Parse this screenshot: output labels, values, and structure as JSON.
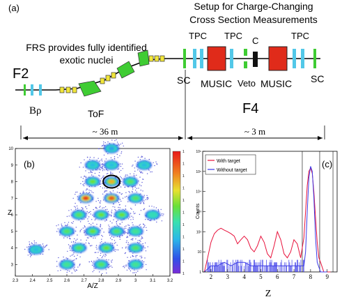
{
  "panel_a": {
    "label": "(a)",
    "setup_title_line1": "Setup for Charge-Changing",
    "setup_title_line2": "Cross Section Measurements",
    "frs_text_line1": "FRS provides fully identified",
    "frs_text_line2": "exotic nuclei",
    "f2": "F2",
    "f4": "F4",
    "brho": "Bρ",
    "tof": "ToF",
    "sc_left": "SC",
    "sc_right": "SC",
    "tpc1": "TPC",
    "tpc2": "TPC",
    "tpc3": "TPC",
    "c_label": "C",
    "music1": "MUSIC",
    "music2": "MUSIC",
    "veto": "Veto",
    "dist_left": "~ 36 m",
    "dist_right": "~ 3 m",
    "colors": {
      "quad": "#f2e63a",
      "dipole": "#3fcc33",
      "music": "#e02b1a",
      "tpc": "#52c8e8",
      "sc": "#3fcc33",
      "target": "#111111"
    }
  },
  "panel_b": {
    "label": "(b)",
    "xlabel": "A/Z",
    "ylabel": "Z",
    "xticks": [
      "2.3",
      "2.4",
      "2.5",
      "2.6",
      "2.7",
      "2.8",
      "2.9",
      "3",
      "3.1",
      "3.2"
    ],
    "yticks": [
      "3",
      "4",
      "5",
      "6",
      "7",
      "8",
      "9",
      "10"
    ],
    "colorbar_ticks": [
      "1",
      "1",
      "1",
      "1",
      "1",
      "1",
      "1",
      "1",
      "1",
      "1",
      "1"
    ]
  },
  "chart_data": [
    {
      "type": "heatmap",
      "xlabel": "A/Z",
      "ylabel": "Z",
      "xlim": [
        2.3,
        3.2
      ],
      "ylim": [
        2.3,
        10
      ],
      "clusters": [
        {
          "x": 2.42,
          "y": 3.9,
          "level": 0.3
        },
        {
          "x": 2.6,
          "y": 3.0,
          "level": 0.45
        },
        {
          "x": 2.6,
          "y": 5.0,
          "level": 0.5
        },
        {
          "x": 2.67,
          "y": 4.0,
          "level": 0.5
        },
        {
          "x": 2.67,
          "y": 6.0,
          "level": 0.5
        },
        {
          "x": 2.71,
          "y": 7.0,
          "level": 0.95
        },
        {
          "x": 2.75,
          "y": 5.0,
          "level": 0.55
        },
        {
          "x": 2.75,
          "y": 8.0,
          "level": 0.55
        },
        {
          "x": 2.75,
          "y": 9.0,
          "level": 0.3
        },
        {
          "x": 2.8,
          "y": 3.0,
          "level": 0.5
        },
        {
          "x": 2.8,
          "y": 6.0,
          "level": 0.55
        },
        {
          "x": 2.83,
          "y": 4.0,
          "level": 0.55
        },
        {
          "x": 2.86,
          "y": 7.0,
          "level": 0.9
        },
        {
          "x": 2.86,
          "y": 8.0,
          "level": 0.75
        },
        {
          "x": 2.86,
          "y": 9.0,
          "level": 0.3
        },
        {
          "x": 2.86,
          "y": 10.0,
          "level": 0.25
        },
        {
          "x": 2.89,
          "y": 5.0,
          "level": 0.5
        },
        {
          "x": 2.92,
          "y": 6.0,
          "level": 0.55
        },
        {
          "x": 2.97,
          "y": 8.0,
          "level": 0.5
        },
        {
          "x": 3.0,
          "y": 4.0,
          "level": 0.5
        },
        {
          "x": 3.0,
          "y": 5.0,
          "level": 0.45
        },
        {
          "x": 3.0,
          "y": 7.0,
          "level": 0.5
        },
        {
          "x": 3.0,
          "y": 3.0,
          "level": 0.45
        },
        {
          "x": 3.05,
          "y": 9.0,
          "level": 0.3
        },
        {
          "x": 3.1,
          "y": 6.0,
          "level": 0.4
        }
      ],
      "highlight": {
        "x": 2.86,
        "y": 8.0
      }
    },
    {
      "type": "line",
      "xlabel": "Z",
      "ylabel": "Counts",
      "xlim": [
        1.5,
        9.6
      ],
      "ylog": true,
      "ylim": [
        1,
        1000000
      ],
      "xticks": [
        "2",
        "3",
        "4",
        "5",
        "6",
        "7",
        "8",
        "9"
      ],
      "yticks": [
        "1",
        "10",
        "10²",
        "10³",
        "10⁴",
        "10⁵",
        "10⁶"
      ],
      "label": "(c)",
      "cut_lines": [
        7.5,
        8.55,
        9.35
      ],
      "series": [
        {
          "name": "With target",
          "color": "#e8103a",
          "x": [
            1.6,
            1.8,
            2.0,
            2.2,
            2.4,
            2.6,
            2.8,
            3.0,
            3.2,
            3.4,
            3.6,
            3.8,
            4.0,
            4.2,
            4.4,
            4.6,
            4.8,
            5.0,
            5.2,
            5.4,
            5.6,
            5.8,
            6.0,
            6.2,
            6.4,
            6.6,
            6.8,
            7.0,
            7.2,
            7.4,
            7.6,
            7.7,
            7.8,
            7.9,
            8.0,
            8.1,
            8.2,
            8.3,
            8.4,
            8.5,
            8.6,
            8.8,
            9.0,
            9.2
          ],
          "values": [
            1,
            5,
            30,
            80,
            120,
            150,
            120,
            100,
            80,
            60,
            25,
            40,
            60,
            40,
            15,
            10,
            20,
            60,
            30,
            8,
            5,
            20,
            100,
            40,
            8,
            5,
            10,
            40,
            25,
            5,
            50,
            1000,
            20000,
            100000,
            150000,
            80000,
            10000,
            500,
            30,
            5,
            3,
            1,
            1,
            1
          ]
        },
        {
          "name": "Without target",
          "color": "#3a3ae8",
          "x": [
            1.6,
            2.0,
            2.4,
            2.8,
            3.2,
            3.6,
            4.0,
            4.4,
            4.8,
            5.2,
            5.6,
            6.0,
            6.4,
            6.8,
            7.2,
            7.6,
            7.7,
            7.8,
            7.9,
            8.0,
            8.1,
            8.2,
            8.3,
            8.4,
            8.6,
            9.0
          ],
          "values": [
            1,
            2,
            2,
            3,
            2,
            3,
            3,
            2,
            2,
            2,
            2,
            2,
            2,
            2,
            2,
            2,
            10,
            1000,
            50000,
            180000,
            100000,
            5000,
            50,
            3,
            1,
            1
          ]
        }
      ]
    }
  ]
}
